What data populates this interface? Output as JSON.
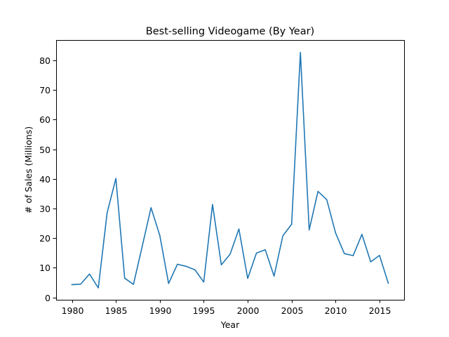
{
  "chart_data": {
    "type": "line",
    "title": "Best-selling Videogame (By Year)",
    "xlabel": "Year",
    "ylabel": "# of Sales (Millions)",
    "xlim": [
      1978.2,
      2017.8
    ],
    "ylim": [
      -0.8,
      86.9
    ],
    "xticks": [
      1980,
      1985,
      1990,
      1995,
      2000,
      2005,
      2010,
      2015
    ],
    "yticks": [
      0,
      10,
      20,
      30,
      40,
      50,
      60,
      70,
      80
    ],
    "grid": false,
    "colors": {
      "series": "#1f77b4"
    },
    "series": [
      {
        "x": [
          1980,
          1981,
          1982,
          1983,
          1984,
          1985,
          1986,
          1987,
          1988,
          1989,
          1990,
          1991,
          1992,
          1993,
          1994,
          1995,
          1996,
          1997,
          1998,
          1999,
          2000,
          2001,
          2002,
          2003,
          2004,
          2005,
          2006,
          2007,
          2008,
          2009,
          2010,
          2011,
          2012,
          2013,
          2014,
          2015,
          2016
        ],
        "values": [
          4.3,
          4.5,
          7.9,
          3.2,
          28.5,
          40.2,
          6.5,
          4.4,
          17.3,
          30.3,
          20.9,
          4.7,
          11.2,
          10.5,
          9.3,
          5.2,
          31.4,
          11.0,
          14.6,
          23.1,
          6.4,
          15.0,
          16.1,
          7.2,
          20.8,
          24.7,
          82.7,
          22.8,
          35.8,
          33.0,
          21.8,
          14.8,
          14.1,
          21.3,
          12.0,
          14.2,
          4.8
        ]
      }
    ]
  }
}
